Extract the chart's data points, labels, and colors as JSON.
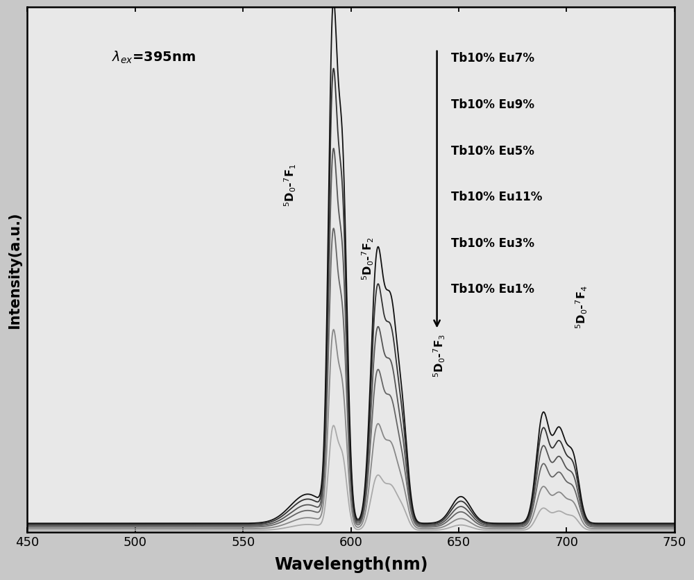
{
  "xlabel": "Wavelength(nm)",
  "ylabel": "Intensity(a.u.)",
  "xlim": [
    450,
    750
  ],
  "ylim": [
    0,
    1.08
  ],
  "xticks": [
    450,
    500,
    550,
    600,
    650,
    700,
    750
  ],
  "series": [
    {
      "label": "Tb10% Eu7%",
      "color": "#111111",
      "scale": 1.0
    },
    {
      "label": "Tb10% Eu9%",
      "color": "#333333",
      "scale": 0.87
    },
    {
      "label": "Tb10% Eu5%",
      "color": "#555555",
      "scale": 0.72
    },
    {
      "label": "Tb10% Eu11%",
      "color": "#666666",
      "scale": 0.57
    },
    {
      "label": "Tb10% Eu3%",
      "color": "#888888",
      "scale": 0.38
    },
    {
      "label": "Tb10% Eu1%",
      "color": "#aaaaaa",
      "scale": 0.2
    }
  ],
  "background_color": "#c8c8c8",
  "plot_bg_color": "#e8e8e8"
}
